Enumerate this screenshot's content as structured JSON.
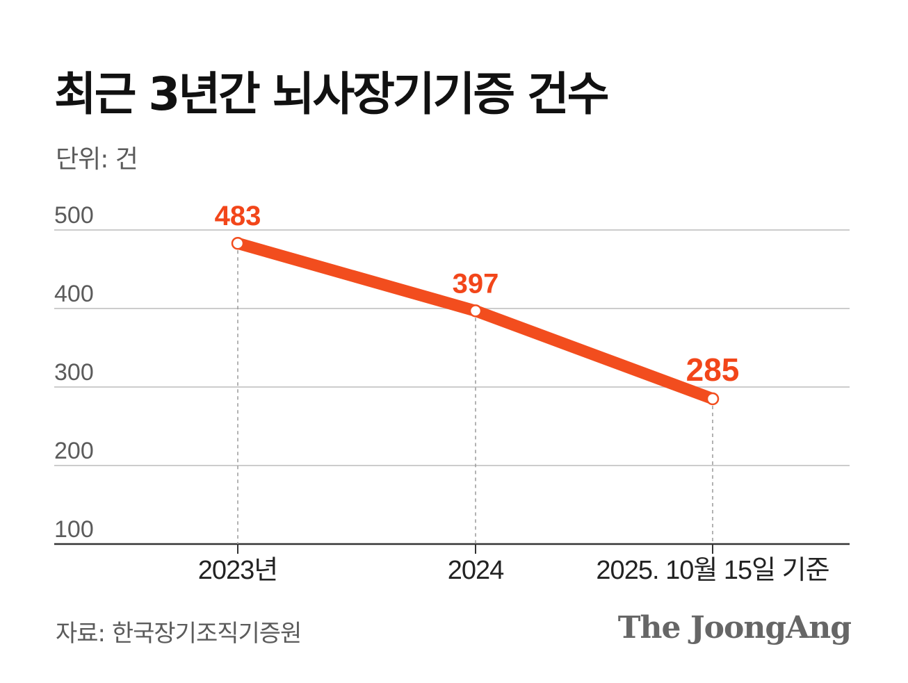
{
  "header": {
    "title": "최근 3년간 뇌사장기기증 건수",
    "unit": "단위: 건"
  },
  "footer": {
    "source": "자료: 한국장기조직기증원",
    "logo": "The JoongAng"
  },
  "colors": {
    "line": "#f24d1e",
    "label": "#f2461a",
    "grid": "#cccccc",
    "axis": "#333333"
  },
  "chart_data": {
    "type": "line",
    "categories": [
      "2023년",
      "2024",
      "2025. 10월 15일 기준"
    ],
    "values": [
      483,
      397,
      285
    ],
    "value_labels": [
      "483",
      "397",
      "285"
    ],
    "yticks": [
      100,
      200,
      300,
      400,
      500
    ],
    "ylim": [
      100,
      500
    ],
    "grid": true,
    "legend": "none"
  }
}
